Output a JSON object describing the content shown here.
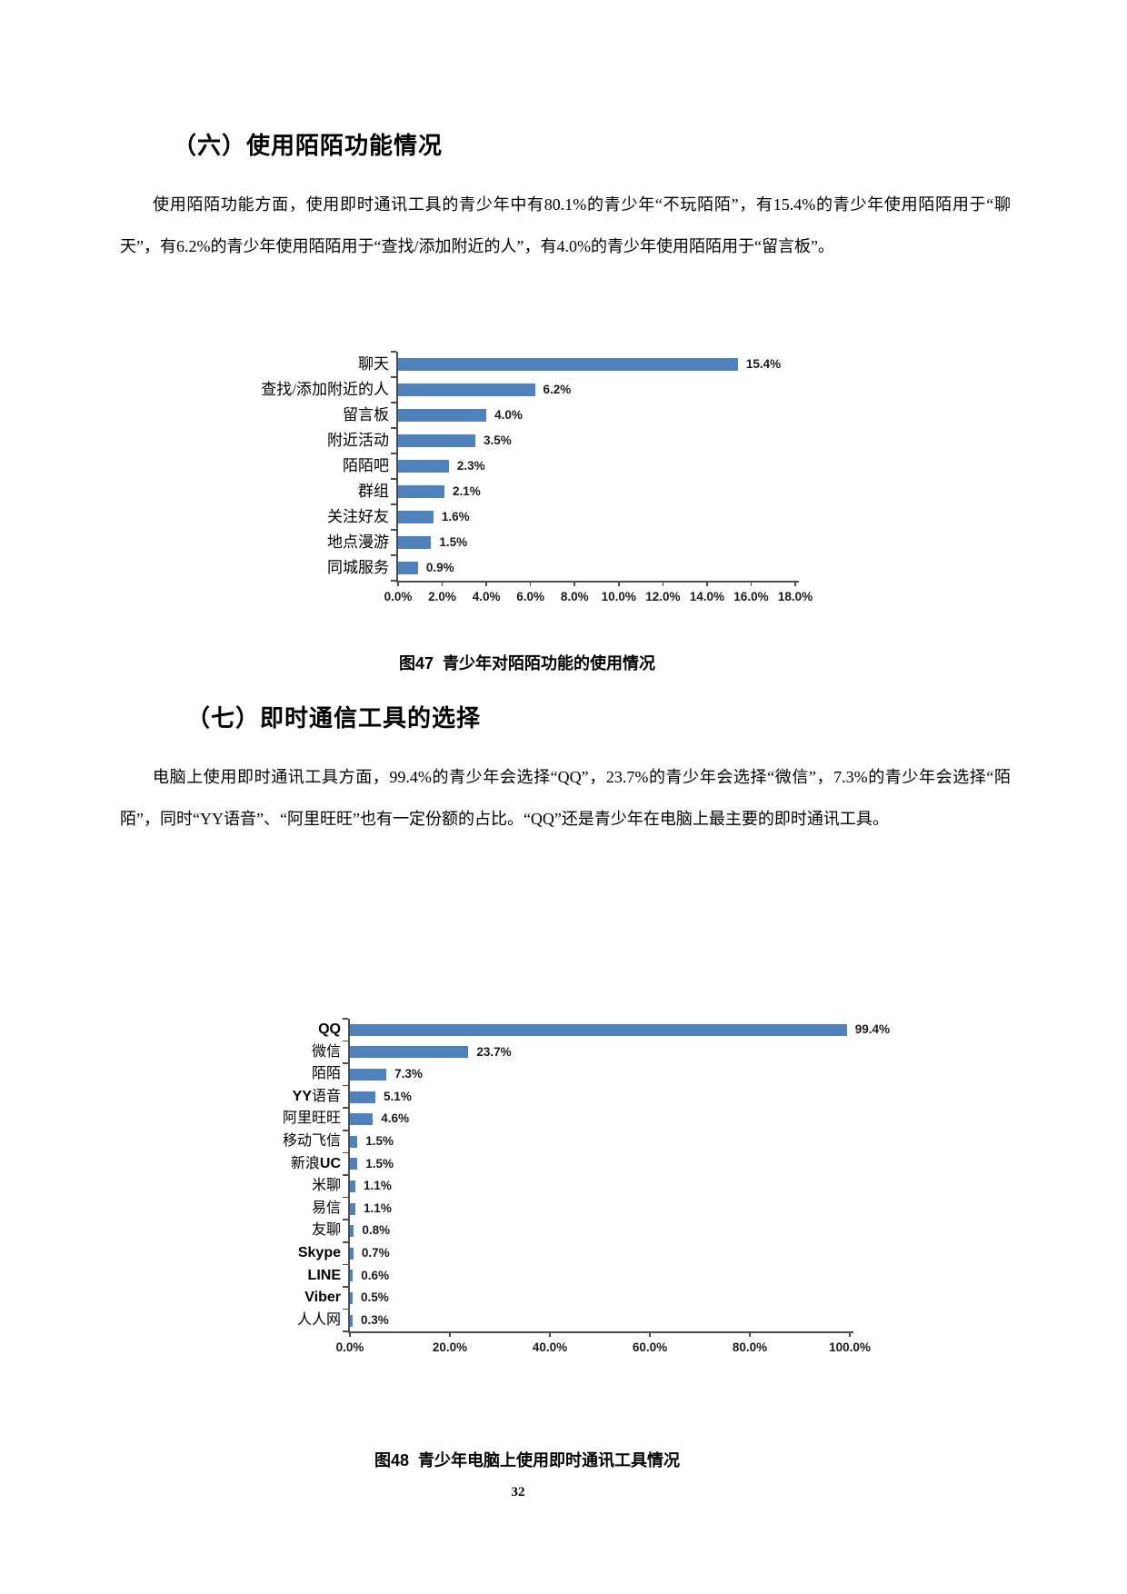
{
  "page": {
    "number": "32"
  },
  "sections": [
    {
      "heading": "（六）使用陌陌功能情况",
      "paragraph": "使用陌陌功能方面，使用即时通讯工具的青少年中有80.1%的青少年“不玩陌陌”，有15.4%的青少年使用陌陌用于“聊天”，有6.2%的青少年使用陌陌用于“查找/添加附近的人”，有4.0%的青少年使用陌陌用于“留言板”。",
      "figure_caption": "图47  青少年对陌陌功能的使用情况"
    },
    {
      "heading": "（七）即时通信工具的选择",
      "paragraph": "电脑上使用即时通讯工具方面，99.4%的青少年会选择“QQ”，23.7%的青少年会选择“微信”，7.3%的青少年会选择“陌陌”，同时“YY语音”、“阿里旺旺”也有一定份额的占比。“QQ”还是青少年在电脑上最主要的即时通讯工具。",
      "figure_caption": "图48  青少年电脑上使用即时通讯工具情况"
    }
  ],
  "chart_data": [
    {
      "type": "bar",
      "orientation": "horizontal",
      "title": "青少年对陌陌功能的使用情况",
      "categories": [
        "聊天",
        "查找/添加附近的人",
        "留言板",
        "附近活动",
        "陌陌吧",
        "群组",
        "关注好友",
        "地点漫游",
        "同城服务"
      ],
      "values": [
        15.4,
        6.2,
        4.0,
        3.5,
        2.3,
        2.1,
        1.6,
        1.5,
        0.9
      ],
      "value_labels": [
        "15.4%",
        "6.2%",
        "4.0%",
        "3.5%",
        "2.3%",
        "2.1%",
        "1.6%",
        "1.5%",
        "0.9%"
      ],
      "xlim": [
        0,
        18
      ],
      "x_tick_labels": [
        "0.0%",
        "2.0%",
        "4.0%",
        "6.0%",
        "8.0%",
        "10.0%",
        "12.0%",
        "14.0%",
        "16.0%",
        "18.0%"
      ],
      "xlabel": "",
      "ylabel": "",
      "grid": false,
      "legend": "none",
      "bar_color": "#4f81bd"
    },
    {
      "type": "bar",
      "orientation": "horizontal",
      "title": "青少年电脑上使用即时通讯工具情况",
      "categories": [
        "QQ",
        "微信",
        "陌陌",
        "YY语音",
        "阿里旺旺",
        "移动飞信",
        "新浪UC",
        "米聊",
        "易信",
        "友聊",
        "Skype",
        "LINE",
        "Viber",
        "人人网"
      ],
      "values": [
        99.4,
        23.7,
        7.3,
        5.1,
        4.6,
        1.5,
        1.5,
        1.1,
        1.1,
        0.8,
        0.7,
        0.6,
        0.5,
        0.3
      ],
      "value_labels": [
        "99.4%",
        "23.7%",
        "7.3%",
        "5.1%",
        "4.6%",
        "1.5%",
        "1.5%",
        "1.1%",
        "1.1%",
        "0.8%",
        "0.7%",
        "0.6%",
        "0.5%",
        "0.3%"
      ],
      "xlim": [
        0,
        100
      ],
      "x_tick_labels": [
        "0.0%",
        "20.0%",
        "40.0%",
        "60.0%",
        "80.0%",
        "100.0%"
      ],
      "xlabel": "",
      "ylabel": "",
      "grid": false,
      "legend": "none",
      "bar_color": "#4f81bd"
    }
  ]
}
